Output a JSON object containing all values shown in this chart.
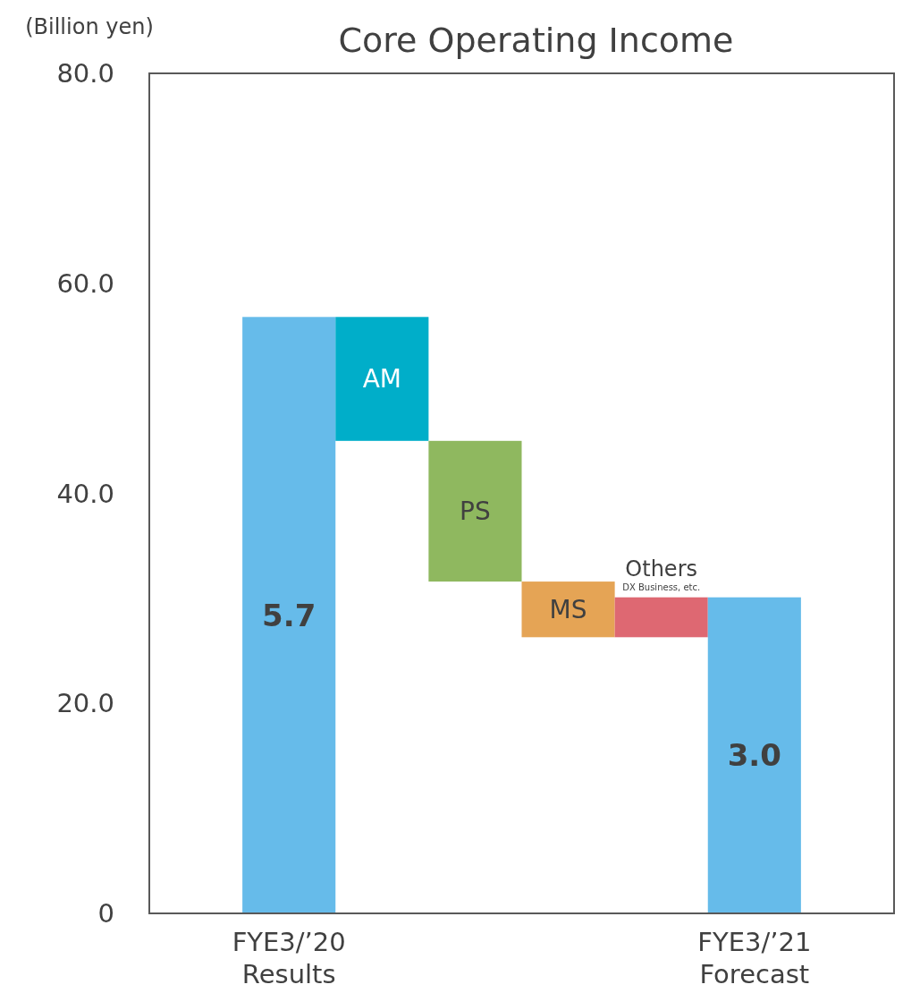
{
  "chart_data": {
    "type": "bar",
    "title": "Core Operating Income",
    "ylabel": "(Billion yen)",
    "categories": [
      "FYE3/’20\nResults",
      null,
      null,
      null,
      null,
      "FYE3/’21\nForecast"
    ],
    "values": [
      56.8,
      -11.8,
      -13.4,
      -5.3,
      3.8,
      30.1
    ],
    "base": [
      0,
      56.8,
      45.0,
      31.6,
      26.3,
      0
    ],
    "colors": [
      "#66bbea",
      "#00aec9",
      "#8fb85f",
      "#e5a455",
      "#de6872",
      "#66bbea"
    ],
    "value_labels": [
      null,
      "AM",
      "PS",
      "MS",
      "Others\nDX Business, etc.",
      null
    ],
    "annotations": [
      "5.7",
      "3.0"
    ],
    "ylim": [
      0,
      80
    ],
    "yticks": [
      0,
      {
        "value": 20,
        "label": "20.0"
      },
      {
        "value": 40,
        "label": "40.0"
      },
      {
        "value": 60,
        "label": "60.0"
      },
      {
        "value": 80,
        "label": "80.0"
      }
    ],
    "grid": false
  }
}
